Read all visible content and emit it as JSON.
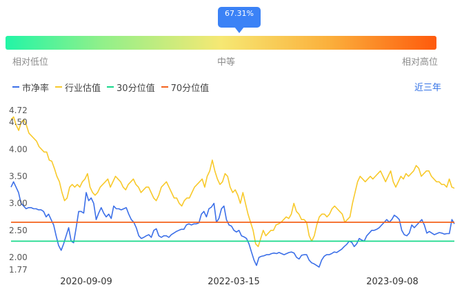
{
  "gauge": {
    "percentile_label": "67.31%",
    "percentile": 0.6731,
    "low_label": "相对低位",
    "mid_label": "中等",
    "high_label": "相对高位"
  },
  "legend": {
    "items": [
      {
        "label": "市净率",
        "color": "#3b6fe8"
      },
      {
        "label": "行业估值",
        "color": "#f8c92a"
      },
      {
        "label": "30分位值",
        "color": "#16d98a"
      },
      {
        "label": "70分位值",
        "color": "#f4621c"
      }
    ]
  },
  "period_button": "近三年",
  "chart_data": {
    "type": "line",
    "ylim": [
      1.77,
      4.72
    ],
    "y_ticks": [
      "4.72",
      "4.50",
      "4.00",
      "3.50",
      "3.00",
      "2.50",
      "2.00",
      "1.77"
    ],
    "x_ticks": [
      "2020-09-09",
      "2022-03-15",
      "2023-09-08"
    ],
    "series": [
      {
        "name": "市净率",
        "color": "#3b6fe8",
        "values": [
          3.3,
          3.4,
          3.3,
          3.2,
          3.0,
          2.95,
          2.9,
          2.92,
          2.92,
          2.9,
          2.9,
          2.88,
          2.88,
          2.85,
          2.75,
          2.8,
          2.7,
          2.6,
          2.4,
          2.22,
          2.13,
          2.25,
          2.4,
          2.55,
          2.3,
          2.27,
          2.55,
          2.85,
          2.85,
          2.82,
          3.2,
          3.05,
          3.1,
          3.0,
          2.7,
          2.82,
          2.92,
          2.82,
          2.75,
          2.8,
          2.72,
          2.95,
          2.9,
          2.9,
          2.88,
          2.9,
          2.92,
          2.8,
          2.7,
          2.65,
          2.55,
          2.4,
          2.35,
          2.37,
          2.4,
          2.42,
          2.37,
          2.5,
          2.53,
          2.4,
          2.37,
          2.4,
          2.4,
          2.37,
          2.42,
          2.45,
          2.48,
          2.5,
          2.52,
          2.52,
          2.6,
          2.62,
          2.6,
          2.62,
          2.62,
          2.64,
          2.8,
          2.85,
          2.75,
          2.9,
          2.93,
          3.0,
          2.65,
          2.72,
          2.9,
          2.95,
          2.7,
          2.6,
          2.58,
          2.5,
          2.47,
          2.5,
          2.4,
          2.38,
          2.35,
          2.25,
          2.1,
          1.95,
          1.85,
          2.0,
          2.02,
          2.03,
          2.05,
          2.05,
          2.07,
          2.08,
          2.07,
          2.09,
          2.07,
          2.05,
          2.07,
          2.09,
          2.1,
          2.08,
          2.0,
          1.97,
          2.04,
          2.05,
          2.05,
          1.95,
          1.9,
          1.88,
          1.85,
          1.82,
          1.95,
          2.02,
          2.05,
          2.05,
          2.07,
          2.1,
          2.09,
          2.12,
          2.15,
          2.2,
          2.24,
          2.3,
          2.28,
          2.2,
          2.25,
          2.35,
          2.32,
          2.3,
          2.4,
          2.45,
          2.5,
          2.5,
          2.52,
          2.55,
          2.6,
          2.65,
          2.7,
          2.65,
          2.7,
          2.78,
          2.75,
          2.7,
          2.5,
          2.42,
          2.4,
          2.45,
          2.6,
          2.55,
          2.6,
          2.65,
          2.7,
          2.6,
          2.45,
          2.48,
          2.45,
          2.42,
          2.44,
          2.46,
          2.45,
          2.43,
          2.44,
          2.44,
          2.7,
          2.62
        ]
      },
      {
        "name": "行业估值",
        "color": "#f8c92a",
        "values": [
          4.55,
          4.6,
          4.45,
          4.35,
          4.5,
          4.55,
          4.45,
          4.3,
          4.25,
          4.2,
          4.15,
          4.05,
          4.0,
          3.95,
          3.95,
          3.8,
          3.78,
          3.65,
          3.5,
          3.4,
          3.2,
          3.05,
          3.1,
          3.3,
          3.35,
          3.3,
          3.35,
          3.3,
          3.4,
          3.45,
          3.55,
          3.3,
          3.2,
          3.15,
          3.2,
          3.3,
          3.35,
          3.4,
          3.45,
          3.3,
          3.4,
          3.5,
          3.45,
          3.4,
          3.3,
          3.25,
          3.35,
          3.4,
          3.45,
          3.35,
          3.3,
          3.2,
          3.25,
          3.3,
          3.3,
          3.2,
          3.1,
          3.05,
          3.15,
          3.3,
          3.35,
          3.4,
          3.3,
          3.2,
          3.1,
          3.1,
          3.0,
          2.95,
          3.05,
          3.1,
          3.1,
          3.2,
          3.3,
          3.35,
          3.4,
          3.45,
          3.3,
          3.5,
          3.6,
          3.8,
          3.6,
          3.45,
          3.35,
          3.4,
          3.55,
          3.5,
          3.3,
          3.2,
          3.25,
          3.15,
          3.0,
          3.2,
          3.0,
          2.8,
          2.65,
          2.5,
          2.25,
          2.2,
          2.35,
          2.5,
          2.4,
          2.45,
          2.5,
          2.5,
          2.6,
          2.62,
          2.65,
          2.7,
          2.75,
          2.72,
          2.8,
          3.0,
          2.85,
          2.8,
          2.7,
          2.7,
          2.65,
          2.4,
          2.3,
          2.4,
          2.6,
          2.75,
          2.8,
          2.8,
          2.75,
          2.8,
          2.9,
          2.95,
          2.9,
          2.85,
          2.8,
          2.65,
          2.7,
          2.75,
          3.0,
          3.2,
          3.4,
          3.5,
          3.45,
          3.4,
          3.45,
          3.5,
          3.45,
          3.5,
          3.55,
          3.6,
          3.5,
          3.4,
          3.5,
          3.6,
          3.4,
          3.3,
          3.4,
          3.5,
          3.45,
          3.55,
          3.5,
          3.55,
          3.6,
          3.7,
          3.65,
          3.5,
          3.55,
          3.6,
          3.6,
          3.5,
          3.45,
          3.4,
          3.4,
          3.35,
          3.35,
          3.3,
          3.45,
          3.3,
          3.28
        ]
      },
      {
        "name": "30分位值",
        "color": "#16d98a",
        "constant": 2.3
      },
      {
        "name": "70分位值",
        "color": "#f4621c",
        "constant": 2.65
      }
    ]
  }
}
